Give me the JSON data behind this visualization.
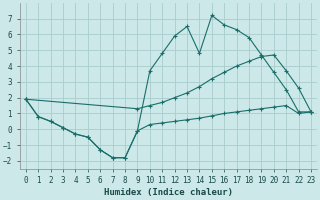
{
  "xlabel": "Humidex (Indice chaleur)",
  "background_color": "#cce8e8",
  "grid_color": "#aacccc",
  "line_color": "#1a6e6a",
  "xlim": [
    -0.5,
    23.5
  ],
  "ylim": [
    -2.5,
    8.0
  ],
  "xticks": [
    0,
    1,
    2,
    3,
    4,
    5,
    6,
    7,
    8,
    9,
    10,
    11,
    12,
    13,
    14,
    15,
    16,
    17,
    18,
    19,
    20,
    21,
    22,
    23
  ],
  "yticks": [
    -2,
    -1,
    0,
    1,
    2,
    3,
    4,
    5,
    6,
    7
  ],
  "line1_x": [
    0,
    1,
    2,
    3,
    4,
    5,
    6,
    7,
    8,
    9,
    10,
    11,
    12,
    13,
    14,
    15,
    16,
    17,
    18,
    19,
    20,
    21,
    22,
    23
  ],
  "line1_y": [
    1.9,
    0.8,
    0.5,
    0.1,
    -0.3,
    -0.5,
    -1.3,
    -1.8,
    -1.8,
    -0.1,
    3.7,
    4.8,
    5.9,
    6.5,
    4.8,
    7.2,
    6.6,
    6.3,
    5.8,
    4.7,
    3.6,
    2.5,
    1.1,
    1.1
  ],
  "line2_x": [
    0,
    1,
    2,
    3,
    4,
    5,
    6,
    7,
    8,
    9,
    10,
    11,
    12,
    13,
    14,
    15,
    16,
    17,
    18,
    19,
    20,
    21,
    22,
    23
  ],
  "line2_y": [
    1.9,
    0.8,
    0.5,
    0.1,
    -0.3,
    -0.5,
    -1.3,
    -1.8,
    -1.8,
    -0.1,
    0.3,
    0.4,
    0.5,
    0.6,
    0.7,
    0.85,
    1.0,
    1.1,
    1.2,
    1.3,
    1.4,
    1.5,
    1.0,
    1.1
  ],
  "line3_x": [
    0,
    9,
    10,
    11,
    12,
    13,
    14,
    15,
    16,
    17,
    18,
    19,
    20,
    21,
    22,
    23
  ],
  "line3_y": [
    1.9,
    1.3,
    1.5,
    1.7,
    2.0,
    2.3,
    2.7,
    3.2,
    3.6,
    4.0,
    4.3,
    4.6,
    4.7,
    3.7,
    2.6,
    1.1
  ]
}
